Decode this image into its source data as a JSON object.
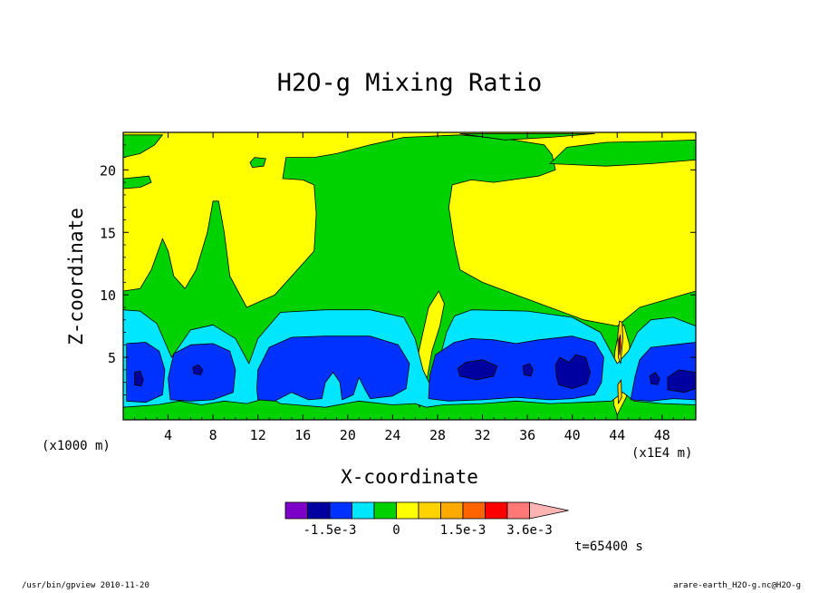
{
  "chart_data": {
    "type": "heatmap",
    "title": "H2O-g Mixing Ratio",
    "xlabel": "X-coordinate",
    "ylabel": "Z-coordinate",
    "x_unit_label": "(x1000 m)",
    "y_unit_label": "(x1E4 m)",
    "xlim": [
      0,
      51
    ],
    "ylim": [
      0,
      23
    ],
    "x_ticks": [
      4,
      8,
      12,
      16,
      20,
      24,
      28,
      32,
      36,
      40,
      44,
      48
    ],
    "y_ticks": [
      5,
      10,
      15,
      20
    ],
    "colorbar": {
      "colors": [
        "#7d00c8",
        "#0000a0",
        "#0032ff",
        "#00e6ff",
        "#00d200",
        "#ffff00",
        "#ffd200",
        "#ffaa00",
        "#ff6400",
        "#ff0000",
        "#ff7878",
        "#ffb4b4"
      ],
      "tick_labels": [
        "-1.5e-3",
        "0",
        "1.5e-3",
        "3.6e-3"
      ],
      "extend": "max"
    },
    "regions": [
      {
        "level": "green",
        "color": "#00d200",
        "points": [
          [
            0,
            0
          ],
          [
            51,
            0
          ],
          [
            51,
            10.3
          ],
          [
            46,
            9
          ],
          [
            44,
            7.5
          ],
          [
            41,
            8
          ],
          [
            38,
            9
          ],
          [
            35,
            10
          ],
          [
            32,
            11
          ],
          [
            30,
            12
          ],
          [
            29.5,
            14
          ],
          [
            29,
            17
          ],
          [
            29.3,
            18.8
          ],
          [
            31,
            19.2
          ],
          [
            33,
            19
          ],
          [
            37,
            19.5
          ],
          [
            38.5,
            20
          ],
          [
            38.2,
            21.2
          ],
          [
            37.5,
            22
          ],
          [
            34,
            22.5
          ],
          [
            30,
            22.8
          ],
          [
            25,
            22.6
          ],
          [
            22,
            22
          ],
          [
            19,
            21.3
          ],
          [
            17,
            21
          ],
          [
            14.5,
            21
          ],
          [
            14.2,
            19.3
          ],
          [
            16,
            19.2
          ],
          [
            17,
            18.8
          ],
          [
            17.2,
            16.5
          ],
          [
            17,
            13.5
          ],
          [
            15.5,
            12
          ],
          [
            13.5,
            10
          ],
          [
            11,
            9
          ],
          [
            9.5,
            11.5
          ],
          [
            9,
            15
          ],
          [
            8.5,
            17.5
          ],
          [
            8,
            17.5
          ],
          [
            7.5,
            15
          ],
          [
            6.5,
            12
          ],
          [
            5.5,
            10.5
          ],
          [
            4.5,
            11.5
          ],
          [
            4,
            13.5
          ],
          [
            3.5,
            14.5
          ],
          [
            2.5,
            12
          ],
          [
            1.5,
            10.5
          ],
          [
            0,
            10.3
          ]
        ]
      },
      {
        "level": "green",
        "color": "#00d200",
        "points": [
          [
            0,
            21
          ],
          [
            1.5,
            21.3
          ],
          [
            2.8,
            22
          ],
          [
            3.5,
            22.8
          ],
          [
            0,
            22.8
          ]
        ]
      },
      {
        "level": "green",
        "color": "#00d200",
        "points": [
          [
            30,
            22.9
          ],
          [
            34,
            22.4
          ],
          [
            38,
            22.6
          ],
          [
            42,
            22.9
          ]
        ]
      },
      {
        "level": "green",
        "color": "#00d200",
        "points": [
          [
            38,
            20.5
          ],
          [
            43,
            20.3
          ],
          [
            47,
            20.5
          ],
          [
            51,
            20.8
          ],
          [
            51,
            22.4
          ],
          [
            48,
            22.3
          ],
          [
            43,
            22.2
          ],
          [
            39.5,
            21.8
          ]
        ]
      },
      {
        "level": "green",
        "color": "#00d200",
        "points": [
          [
            0,
            18.5
          ],
          [
            1.5,
            18.6
          ],
          [
            2.5,
            19
          ],
          [
            2.3,
            19.5
          ],
          [
            0,
            19.3
          ]
        ]
      },
      {
        "level": "green",
        "color": "#00d200",
        "points": [
          [
            11.5,
            20.2
          ],
          [
            12.5,
            20.3
          ],
          [
            12.7,
            20.9
          ],
          [
            11.7,
            21
          ],
          [
            11.3,
            20.6
          ]
        ]
      },
      {
        "level": "yellow",
        "color": "#ffff00",
        "points": [
          [
            26.4,
            1
          ],
          [
            27,
            3
          ],
          [
            27.5,
            5.5
          ],
          [
            28.2,
            7.5
          ],
          [
            28.6,
            9.3
          ],
          [
            28.1,
            10.3
          ],
          [
            27.2,
            9
          ],
          [
            26.7,
            7
          ],
          [
            26.1,
            4.5
          ],
          [
            25.9,
            2.5
          ]
        ]
      },
      {
        "level": "yellow",
        "color": "#ffff00",
        "points": [
          [
            44,
            0.4
          ],
          [
            44.8,
            1.8
          ],
          [
            45.2,
            3.5
          ],
          [
            45.1,
            6
          ],
          [
            44.6,
            7.6
          ],
          [
            44.2,
            7.3
          ],
          [
            43.8,
            5.5
          ],
          [
            43.6,
            3
          ],
          [
            43.7,
            1.2
          ]
        ]
      },
      {
        "level": "cyan",
        "color": "#00e6ff",
        "points": [
          [
            0,
            1
          ],
          [
            3,
            1.2
          ],
          [
            5,
            1.5
          ],
          [
            7,
            1.2
          ],
          [
            9,
            1.5
          ],
          [
            11,
            1.3
          ],
          [
            13,
            1.8
          ],
          [
            14,
            1.3
          ],
          [
            18,
            1
          ],
          [
            21,
            1.5
          ],
          [
            24,
            1.2
          ],
          [
            26,
            1.3
          ],
          [
            27,
            1
          ],
          [
            28.5,
            1.2
          ],
          [
            32,
            1.3
          ],
          [
            35,
            1.5
          ],
          [
            38,
            1.3
          ],
          [
            41,
            1.4
          ],
          [
            43.5,
            1.5
          ],
          [
            44.5,
            2.2
          ],
          [
            45.5,
            1.5
          ],
          [
            48,
            1.3
          ],
          [
            51,
            1.2
          ],
          [
            51,
            7.5
          ],
          [
            49,
            8.2
          ],
          [
            47,
            8
          ],
          [
            45.8,
            7
          ],
          [
            45,
            5.5
          ],
          [
            44,
            4.5
          ],
          [
            42.5,
            7
          ],
          [
            40,
            8.2
          ],
          [
            36,
            8.7
          ],
          [
            31,
            8.8
          ],
          [
            29.5,
            8.3
          ],
          [
            28.8,
            7
          ],
          [
            27.5,
            2.5
          ],
          [
            26.7,
            4
          ],
          [
            26,
            6.5
          ],
          [
            25,
            8.2
          ],
          [
            22,
            8.8
          ],
          [
            18,
            8.8
          ],
          [
            14,
            8.6
          ],
          [
            12,
            6.5
          ],
          [
            11.2,
            4.5
          ],
          [
            10,
            6.5
          ],
          [
            8,
            7.6
          ],
          [
            6,
            7.2
          ],
          [
            4.3,
            5
          ],
          [
            3,
            7.7
          ],
          [
            1.5,
            8.7
          ],
          [
            0,
            8.8
          ]
        ]
      },
      {
        "level": "blue",
        "color": "#0032ff",
        "points": [
          [
            0.3,
            1.5
          ],
          [
            2,
            1.4
          ],
          [
            3.5,
            2
          ],
          [
            3.7,
            4
          ],
          [
            3.2,
            5.5
          ],
          [
            2,
            6.2
          ],
          [
            0.3,
            6.1
          ]
        ]
      },
      {
        "level": "blue",
        "color": "#0032ff",
        "points": [
          [
            4.2,
            1.6
          ],
          [
            6,
            1.5
          ],
          [
            8,
            1.6
          ],
          [
            9.8,
            2.2
          ],
          [
            10,
            4
          ],
          [
            9.5,
            5.5
          ],
          [
            8,
            6.1
          ],
          [
            6,
            6
          ],
          [
            4.5,
            5.3
          ],
          [
            4,
            3.3
          ]
        ]
      },
      {
        "level": "blue",
        "color": "#0032ff",
        "points": [
          [
            12,
            1.6
          ],
          [
            13.5,
            1.5
          ],
          [
            15,
            2.2
          ],
          [
            16.5,
            1.6
          ],
          [
            17.7,
            1.7
          ],
          [
            18,
            3
          ],
          [
            18.7,
            3.8
          ],
          [
            19.3,
            3
          ],
          [
            19.5,
            1.6
          ],
          [
            20.5,
            2
          ],
          [
            21,
            3.4
          ],
          [
            21.5,
            2.5
          ],
          [
            22,
            1.7
          ],
          [
            24,
            1.9
          ],
          [
            25.2,
            2.5
          ],
          [
            25.5,
            4.5
          ],
          [
            24.5,
            6
          ],
          [
            22,
            6.7
          ],
          [
            18,
            6.7
          ],
          [
            15,
            6.6
          ],
          [
            13,
            5.8
          ],
          [
            12,
            4
          ],
          [
            11.9,
            2.5
          ]
        ]
      },
      {
        "level": "blue",
        "color": "#0032ff",
        "points": [
          [
            27.2,
            1.7
          ],
          [
            29,
            1.5
          ],
          [
            32,
            1.6
          ],
          [
            35,
            1.8
          ],
          [
            38,
            1.6
          ],
          [
            40,
            1.7
          ],
          [
            42,
            2
          ],
          [
            42.6,
            3
          ],
          [
            42.8,
            5
          ],
          [
            42,
            6.2
          ],
          [
            40,
            6.7
          ],
          [
            37,
            6.4
          ],
          [
            35,
            6.1
          ],
          [
            33,
            6.4
          ],
          [
            31,
            6.5
          ],
          [
            29.5,
            6.2
          ],
          [
            27.8,
            5.2
          ],
          [
            27.3,
            3.5
          ]
        ]
      },
      {
        "level": "blue",
        "color": "#0032ff",
        "points": [
          [
            45.2,
            1.6
          ],
          [
            47,
            1.5
          ],
          [
            49,
            1.7
          ],
          [
            51,
            1.6
          ],
          [
            51,
            6.2
          ],
          [
            49,
            6
          ],
          [
            47,
            5.8
          ],
          [
            46,
            4.8
          ],
          [
            45.6,
            3.5
          ]
        ]
      },
      {
        "level": "navy",
        "color": "#0000a0",
        "points": [
          [
            1,
            2.8
          ],
          [
            1.6,
            2.7
          ],
          [
            1.8,
            3.2
          ],
          [
            1.5,
            3.9
          ],
          [
            1,
            3.8
          ]
        ]
      },
      {
        "level": "navy",
        "color": "#0000a0",
        "points": [
          [
            6.3,
            3.7
          ],
          [
            6.9,
            3.6
          ],
          [
            7.1,
            4
          ],
          [
            6.7,
            4.4
          ],
          [
            6.2,
            4.2
          ]
        ]
      },
      {
        "level": "navy",
        "color": "#0000a0",
        "points": [
          [
            30,
            3.5
          ],
          [
            31.5,
            3.2
          ],
          [
            33,
            3.5
          ],
          [
            33.3,
            4.3
          ],
          [
            32,
            4.8
          ],
          [
            30.5,
            4.6
          ],
          [
            29.8,
            4.1
          ]
        ]
      },
      {
        "level": "navy",
        "color": "#0000a0",
        "points": [
          [
            35.7,
            3.6
          ],
          [
            36.3,
            3.5
          ],
          [
            36.5,
            4
          ],
          [
            36.2,
            4.5
          ],
          [
            35.6,
            4.3
          ]
        ]
      },
      {
        "level": "navy",
        "color": "#0000a0",
        "points": [
          [
            38.8,
            2.8
          ],
          [
            40,
            2.5
          ],
          [
            41.3,
            2.9
          ],
          [
            41.6,
            3.8
          ],
          [
            41.2,
            5
          ],
          [
            40.3,
            5.2
          ],
          [
            39.7,
            4.6
          ],
          [
            38.9,
            5
          ],
          [
            38.5,
            4.4
          ],
          [
            38.6,
            3.4
          ]
        ]
      },
      {
        "level": "navy",
        "color": "#0000a0",
        "points": [
          [
            47,
            2.9
          ],
          [
            47.6,
            2.8
          ],
          [
            47.8,
            3.3
          ],
          [
            47.4,
            3.8
          ],
          [
            46.9,
            3.5
          ]
        ]
      },
      {
        "level": "navy",
        "color": "#0000a0",
        "points": [
          [
            48.5,
            2.4
          ],
          [
            50,
            2.2
          ],
          [
            51,
            2.5
          ],
          [
            51,
            3.8
          ],
          [
            49.5,
            4
          ],
          [
            48.5,
            3.4
          ]
        ]
      },
      {
        "level": "orange",
        "color": "#ffd200",
        "points": [
          [
            44.3,
            4.5
          ],
          [
            44.5,
            6.5
          ],
          [
            44.45,
            7.8
          ],
          [
            44.2,
            7.9
          ],
          [
            44.05,
            6.8
          ],
          [
            44.1,
            5
          ]
        ]
      },
      {
        "level": "orange",
        "color": "#ffd200",
        "points": [
          [
            44.1,
            1.3
          ],
          [
            44.4,
            1.8
          ],
          [
            44.35,
            3.2
          ],
          [
            44.05,
            2.8
          ]
        ]
      },
      {
        "level": "red",
        "color": "#ff0000",
        "points": [
          [
            44.22,
            5.2
          ],
          [
            44.32,
            5.8
          ],
          [
            44.28,
            6.8
          ],
          [
            44.15,
            6.4
          ]
        ]
      }
    ]
  },
  "footer": {
    "left": "/usr/bin/gpview  2010-11-20",
    "right": "arare-earth_H2O-g.nc@H2O-g",
    "time": "t=65400 s"
  }
}
